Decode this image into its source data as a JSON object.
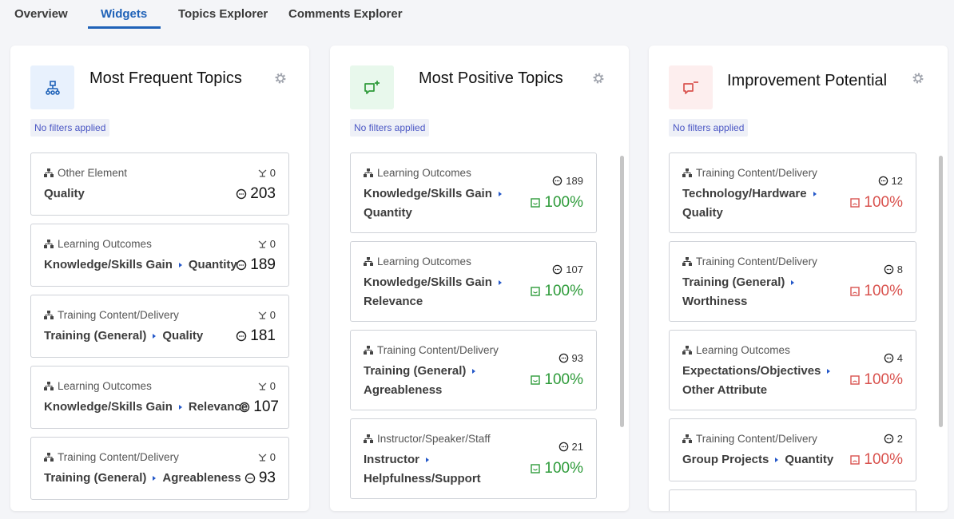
{
  "tabs": [
    {
      "label": "Overview",
      "active": false
    },
    {
      "label": "Widgets",
      "active": true
    },
    {
      "label": "Topics Explorer",
      "active": false
    },
    {
      "label": "Comments Explorer",
      "active": false
    }
  ],
  "colors": {
    "accent": "#1f62b8",
    "positive": "#2e9b3a",
    "negative": "#d9534f",
    "badge_text": "#4a56c4"
  },
  "panels": [
    {
      "title": "Most Frequent Topics",
      "icon": "hierarchy-people-icon",
      "filter_badge": "No filters applied",
      "cards": [
        {
          "category": "Other Element",
          "topic": "Quality",
          "subtopic": "",
          "meta_count": "0",
          "comment_count": "203"
        },
        {
          "category": "Learning Outcomes",
          "topic": "Knowledge/Skills Gain",
          "subtopic": "Quantity",
          "meta_count": "0",
          "comment_count": "189"
        },
        {
          "category": "Training Content/Delivery",
          "topic": "Training (General)",
          "subtopic": "Quality",
          "meta_count": "0",
          "comment_count": "181"
        },
        {
          "category": "Learning Outcomes",
          "topic": "Knowledge/Skills Gain",
          "subtopic": "Relevance",
          "meta_count": "0",
          "comment_count": "107"
        },
        {
          "category": "Training Content/Delivery",
          "topic": "Training (General)",
          "subtopic": "Agreableness",
          "meta_count": "0",
          "comment_count": "93"
        }
      ]
    },
    {
      "title": "Most Positive Topics",
      "icon": "comment-plus-icon",
      "filter_badge": "No filters applied",
      "cards": [
        {
          "category": "Learning Outcomes",
          "topic": "Knowledge/Skills Gain",
          "subtopic": "Quantity",
          "comment_count": "189",
          "percent": "100%"
        },
        {
          "category": "Learning Outcomes",
          "topic": "Knowledge/Skills Gain",
          "subtopic": "Relevance",
          "comment_count": "107",
          "percent": "100%"
        },
        {
          "category": "Training Content/Delivery",
          "topic": "Training (General)",
          "subtopic": "Agreableness",
          "comment_count": "93",
          "percent": "100%"
        },
        {
          "category": "Instructor/Speaker/Staff",
          "topic": "Instructor",
          "subtopic": "Helpfulness/Support",
          "comment_count": "21",
          "percent": "100%"
        }
      ]
    },
    {
      "title": "Improvement Potential",
      "icon": "comment-minus-icon",
      "filter_badge": "No filters applied",
      "cards": [
        {
          "category": "Training Content/Delivery",
          "topic": "Technology/Hardware",
          "subtopic": "Quality",
          "comment_count": "12",
          "percent": "100%"
        },
        {
          "category": "Training Content/Delivery",
          "topic": "Training (General)",
          "subtopic": "Worthiness",
          "comment_count": "8",
          "percent": "100%"
        },
        {
          "category": "Learning Outcomes",
          "topic": "Expectations/Objectives",
          "subtopic": "Other Attribute",
          "comment_count": "4",
          "percent": "100%"
        },
        {
          "category": "Training Content/Delivery",
          "topic": "Group Projects",
          "subtopic": "Quantity",
          "comment_count": "2",
          "percent": "100%"
        }
      ]
    }
  ]
}
